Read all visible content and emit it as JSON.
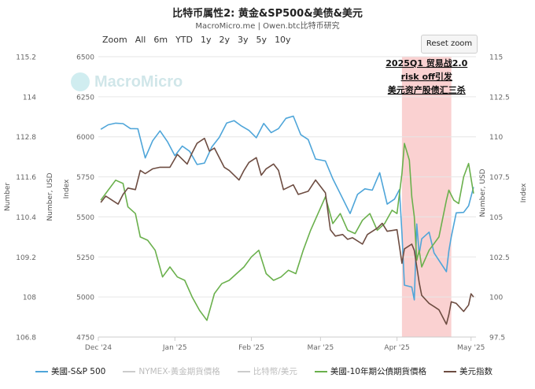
{
  "title": "比特币属性2: 黄金&SP500&美债&美元",
  "subtitle": "MacroMicro.me | Owen.btc比特币研究",
  "range_buttons": [
    "Zoom",
    "All",
    "6m",
    "YTD",
    "1y",
    "2y",
    "3y",
    "5y",
    "10y"
  ],
  "reset_label": "Reset zoom",
  "watermark": "MacroMicro",
  "annotation": [
    "2025Q1 贸易战2.0",
    "risk off引发",
    "美元资产股债汇三杀"
  ],
  "legend": [
    {
      "label": "美國-S&P 500",
      "color": "#4ea5d9",
      "visible": true
    },
    {
      "label": "NYMEX-黃金期貨價格",
      "color": "#cccccc",
      "visible": false
    },
    {
      "label": "比特幣/美元",
      "color": "#cccccc",
      "visible": false
    },
    {
      "label": "美國-10年期公債期貨價格",
      "color": "#6ab04c",
      "visible": true
    },
    {
      "label": "美元指数",
      "color": "#6d4c41",
      "visible": true
    }
  ],
  "axes": {
    "left_outer_label": "Number",
    "left_inner_label": "Number, USD",
    "left_index_label": "Index",
    "right_inner_label": "Number, USD",
    "right_outer_label": "Index",
    "left_outer_ticks": [
      "115.2",
      "114",
      "112.8",
      "111.6",
      "110.4",
      "109.2",
      "108",
      "106.8"
    ],
    "left_inner_ticks": [
      "6500",
      "6250",
      "6000",
      "5750",
      "5500",
      "5250",
      "5000",
      "4750"
    ],
    "right_ticks": [
      "115",
      "112.5",
      "110",
      "107.5",
      "105",
      "102.5",
      "100",
      "97.5"
    ],
    "x_ticks": [
      "Dec '24",
      "Jan '25",
      "Feb '25",
      "Mar '25",
      "Apr '25",
      "May '25"
    ]
  },
  "chart_data": {
    "type": "line",
    "x_range": [
      "2024-12-01",
      "2025-05-03"
    ],
    "highlight": {
      "from": "2025-04-03",
      "to": "2025-04-23"
    },
    "series": [
      {
        "name": "美國-S&P 500",
        "axis": "left_inner",
        "ylim": [
          4750,
          6500
        ],
        "color": "#4ea5d9",
        "points": [
          [
            "2024-12-02",
            6047
          ],
          [
            "2024-12-05",
            6075
          ],
          [
            "2024-12-08",
            6085
          ],
          [
            "2024-12-11",
            6082
          ],
          [
            "2024-12-14",
            6051
          ],
          [
            "2024-12-17",
            6050
          ],
          [
            "2024-12-20",
            5868
          ],
          [
            "2024-12-23",
            5975
          ],
          [
            "2024-12-26",
            6037
          ],
          [
            "2024-12-29",
            5970
          ],
          [
            "2025-01-01",
            5882
          ],
          [
            "2025-01-04",
            5942
          ],
          [
            "2025-01-07",
            5909
          ],
          [
            "2025-01-10",
            5827
          ],
          [
            "2025-01-13",
            5836
          ],
          [
            "2025-01-16",
            5937
          ],
          [
            "2025-01-19",
            5996
          ],
          [
            "2025-01-22",
            6086
          ],
          [
            "2025-01-25",
            6101
          ],
          [
            "2025-01-28",
            6067
          ],
          [
            "2025-01-31",
            6040
          ],
          [
            "2025-02-03",
            5994
          ],
          [
            "2025-02-06",
            6083
          ],
          [
            "2025-02-09",
            6026
          ],
          [
            "2025-02-12",
            6051
          ],
          [
            "2025-02-15",
            6115
          ],
          [
            "2025-02-18",
            6129
          ],
          [
            "2025-02-21",
            6013
          ],
          [
            "2025-02-24",
            5983
          ],
          [
            "2025-02-27",
            5861
          ],
          [
            "2025-03-03",
            5849
          ],
          [
            "2025-03-06",
            5738
          ],
          [
            "2025-03-10",
            5614
          ],
          [
            "2025-03-13",
            5521
          ],
          [
            "2025-03-16",
            5640
          ],
          [
            "2025-03-19",
            5675
          ],
          [
            "2025-03-22",
            5667
          ],
          [
            "2025-03-25",
            5776
          ],
          [
            "2025-03-28",
            5580
          ],
          [
            "2025-03-31",
            5611
          ],
          [
            "2025-04-02",
            5670
          ],
          [
            "2025-04-03",
            5396
          ],
          [
            "2025-04-04",
            5074
          ],
          [
            "2025-04-07",
            5062
          ],
          [
            "2025-04-08",
            4982
          ],
          [
            "2025-04-09",
            5456
          ],
          [
            "2025-04-10",
            5268
          ],
          [
            "2025-04-11",
            5363
          ],
          [
            "2025-04-14",
            5405
          ],
          [
            "2025-04-16",
            5275
          ],
          [
            "2025-04-21",
            5158
          ],
          [
            "2025-04-22",
            5287
          ],
          [
            "2025-04-23",
            5376
          ],
          [
            "2025-04-25",
            5525
          ],
          [
            "2025-04-28",
            5528
          ],
          [
            "2025-04-30",
            5569
          ],
          [
            "2025-05-02",
            5686
          ]
        ]
      },
      {
        "name": "美國-10年期公債期貨價格",
        "axis": "left_outer",
        "ylim": [
          106.8,
          115.2
        ],
        "color": "#6ab04c",
        "points": [
          [
            "2024-12-02",
            110.9
          ],
          [
            "2024-12-05",
            111.2
          ],
          [
            "2024-12-08",
            111.5
          ],
          [
            "2024-12-11",
            111.4
          ],
          [
            "2024-12-13",
            110.7
          ],
          [
            "2024-12-16",
            110.5
          ],
          [
            "2024-12-18",
            109.8
          ],
          [
            "2024-12-21",
            109.7
          ],
          [
            "2024-12-24",
            109.4
          ],
          [
            "2024-12-27",
            108.6
          ],
          [
            "2024-12-30",
            108.9
          ],
          [
            "2025-01-02",
            108.6
          ],
          [
            "2025-01-05",
            108.5
          ],
          [
            "2025-01-08",
            108.0
          ],
          [
            "2025-01-11",
            107.6
          ],
          [
            "2025-01-14",
            107.3
          ],
          [
            "2025-01-17",
            108.1
          ],
          [
            "2025-01-20",
            108.4
          ],
          [
            "2025-01-23",
            108.5
          ],
          [
            "2025-01-26",
            108.7
          ],
          [
            "2025-01-29",
            108.9
          ],
          [
            "2025-02-01",
            109.2
          ],
          [
            "2025-02-04",
            109.4
          ],
          [
            "2025-02-07",
            108.7
          ],
          [
            "2025-02-10",
            108.5
          ],
          [
            "2025-02-13",
            108.6
          ],
          [
            "2025-02-16",
            108.8
          ],
          [
            "2025-02-19",
            108.7
          ],
          [
            "2025-02-22",
            109.4
          ],
          [
            "2025-02-25",
            110.0
          ],
          [
            "2025-02-28",
            110.5
          ],
          [
            "2025-03-03",
            111.0
          ],
          [
            "2025-03-06",
            110.2
          ],
          [
            "2025-03-09",
            110.5
          ],
          [
            "2025-03-12",
            110.0
          ],
          [
            "2025-03-15",
            109.9
          ],
          [
            "2025-03-18",
            110.3
          ],
          [
            "2025-03-21",
            110.5
          ],
          [
            "2025-03-24",
            110.0
          ],
          [
            "2025-03-27",
            110.2
          ],
          [
            "2025-03-30",
            110.6
          ],
          [
            "2025-04-01",
            110.5
          ],
          [
            "2025-04-03",
            111.7
          ],
          [
            "2025-04-04",
            112.6
          ],
          [
            "2025-04-06",
            112.1
          ],
          [
            "2025-04-07",
            111.0
          ],
          [
            "2025-04-08",
            110.4
          ],
          [
            "2025-04-09",
            109.1
          ],
          [
            "2025-04-10",
            109.4
          ],
          [
            "2025-04-11",
            108.9
          ],
          [
            "2025-04-14",
            109.4
          ],
          [
            "2025-04-16",
            109.6
          ],
          [
            "2025-04-18",
            109.8
          ],
          [
            "2025-04-21",
            110.9
          ],
          [
            "2025-04-22",
            111.2
          ],
          [
            "2025-04-24",
            110.9
          ],
          [
            "2025-04-26",
            110.8
          ],
          [
            "2025-04-28",
            111.6
          ],
          [
            "2025-04-30",
            112.0
          ],
          [
            "2025-05-02",
            111.1
          ]
        ]
      },
      {
        "name": "美元指数",
        "axis": "right",
        "ylim": [
          97.5,
          115
        ],
        "color": "#6d4c41",
        "points": [
          [
            "2024-12-02",
            105.9
          ],
          [
            "2024-12-04",
            106.3
          ],
          [
            "2024-12-06",
            106.1
          ],
          [
            "2024-12-09",
            105.8
          ],
          [
            "2024-12-11",
            106.4
          ],
          [
            "2024-12-13",
            106.8
          ],
          [
            "2024-12-16",
            106.7
          ],
          [
            "2024-12-18",
            107.9
          ],
          [
            "2024-12-20",
            107.7
          ],
          [
            "2024-12-23",
            108.0
          ],
          [
            "2024-12-26",
            108.1
          ],
          [
            "2024-12-30",
            108.1
          ],
          [
            "2025-01-02",
            108.9
          ],
          [
            "2025-01-06",
            108.3
          ],
          [
            "2025-01-08",
            109.0
          ],
          [
            "2025-01-10",
            109.6
          ],
          [
            "2025-01-13",
            109.9
          ],
          [
            "2025-01-15",
            109.1
          ],
          [
            "2025-01-17",
            109.3
          ],
          [
            "2025-01-21",
            108.1
          ],
          [
            "2025-01-23",
            107.9
          ],
          [
            "2025-01-27",
            107.3
          ],
          [
            "2025-01-29",
            107.9
          ],
          [
            "2025-01-31",
            108.4
          ],
          [
            "2025-02-03",
            108.7
          ],
          [
            "2025-02-05",
            107.6
          ],
          [
            "2025-02-07",
            108.0
          ],
          [
            "2025-02-10",
            108.3
          ],
          [
            "2025-02-12",
            107.9
          ],
          [
            "2025-02-14",
            106.7
          ],
          [
            "2025-02-18",
            107.0
          ],
          [
            "2025-02-20",
            106.4
          ],
          [
            "2025-02-24",
            106.6
          ],
          [
            "2025-02-27",
            107.3
          ],
          [
            "2025-03-03",
            106.5
          ],
          [
            "2025-03-05",
            104.2
          ],
          [
            "2025-03-07",
            103.8
          ],
          [
            "2025-03-10",
            103.9
          ],
          [
            "2025-03-12",
            103.6
          ],
          [
            "2025-03-14",
            103.7
          ],
          [
            "2025-03-18",
            103.3
          ],
          [
            "2025-03-20",
            103.9
          ],
          [
            "2025-03-24",
            104.3
          ],
          [
            "2025-03-26",
            104.6
          ],
          [
            "2025-03-28",
            104.1
          ],
          [
            "2025-04-01",
            104.2
          ],
          [
            "2025-04-03",
            102.1
          ],
          [
            "2025-04-04",
            103.0
          ],
          [
            "2025-04-07",
            103.3
          ],
          [
            "2025-04-08",
            102.9
          ],
          [
            "2025-04-10",
            100.9
          ],
          [
            "2025-04-11",
            100.1
          ],
          [
            "2025-04-14",
            99.6
          ],
          [
            "2025-04-16",
            99.4
          ],
          [
            "2025-04-18",
            99.2
          ],
          [
            "2025-04-21",
            98.3
          ],
          [
            "2025-04-22",
            98.9
          ],
          [
            "2025-04-23",
            99.7
          ],
          [
            "2025-04-25",
            99.6
          ],
          [
            "2025-04-28",
            99.1
          ],
          [
            "2025-04-30",
            99.5
          ],
          [
            "2025-05-01",
            100.2
          ],
          [
            "2025-05-02",
            100.0
          ]
        ]
      }
    ]
  }
}
